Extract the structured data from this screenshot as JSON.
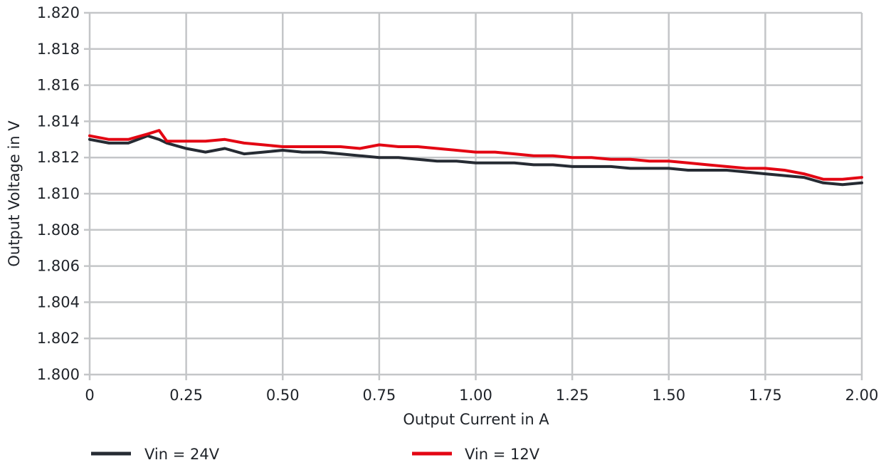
{
  "chart_data": {
    "type": "line",
    "xlabel": "Output Current in A",
    "ylabel": "Output Voltage in V",
    "xlim": [
      0,
      2.0
    ],
    "ylim": [
      1.8,
      1.82
    ],
    "x_ticks": [
      0,
      0.25,
      0.5,
      0.75,
      1.0,
      1.25,
      1.5,
      1.75,
      2.0
    ],
    "x_tick_labels": [
      "0",
      "0.25",
      "0.50",
      "0.75",
      "1.00",
      "1.25",
      "1.50",
      "1.75",
      "2.00"
    ],
    "y_ticks": [
      1.8,
      1.802,
      1.804,
      1.806,
      1.808,
      1.81,
      1.812,
      1.814,
      1.816,
      1.818,
      1.82
    ],
    "y_tick_labels": [
      "1.800",
      "1.802",
      "1.804",
      "1.806",
      "1.808",
      "1.810",
      "1.812",
      "1.814",
      "1.816",
      "1.818",
      "1.820"
    ],
    "grid": true,
    "legend_position": "bottom",
    "series": [
      {
        "name": "Vin = 24V",
        "color": "#262b33",
        "x": [
          0,
          0.05,
          0.1,
          0.15,
          0.18,
          0.2,
          0.25,
          0.3,
          0.35,
          0.4,
          0.45,
          0.5,
          0.55,
          0.6,
          0.65,
          0.7,
          0.75,
          0.8,
          0.85,
          0.9,
          0.95,
          1.0,
          1.05,
          1.1,
          1.15,
          1.2,
          1.25,
          1.3,
          1.35,
          1.4,
          1.45,
          1.5,
          1.55,
          1.6,
          1.65,
          1.7,
          1.75,
          1.8,
          1.85,
          1.9,
          1.95,
          2.0
        ],
        "y": [
          1.813,
          1.8128,
          1.8128,
          1.8132,
          1.813,
          1.8128,
          1.8125,
          1.8123,
          1.8125,
          1.8122,
          1.8123,
          1.8124,
          1.8123,
          1.8123,
          1.8122,
          1.8121,
          1.812,
          1.812,
          1.8119,
          1.8118,
          1.8118,
          1.8117,
          1.8117,
          1.8117,
          1.8116,
          1.8116,
          1.8115,
          1.8115,
          1.8115,
          1.8114,
          1.8114,
          1.8114,
          1.8113,
          1.8113,
          1.8113,
          1.8112,
          1.8111,
          1.811,
          1.8109,
          1.8106,
          1.8105,
          1.8106
        ]
      },
      {
        "name": "Vin = 12V",
        "color": "#e30613",
        "x": [
          0,
          0.05,
          0.1,
          0.15,
          0.18,
          0.2,
          0.25,
          0.3,
          0.35,
          0.4,
          0.45,
          0.5,
          0.55,
          0.6,
          0.65,
          0.7,
          0.75,
          0.8,
          0.85,
          0.9,
          0.95,
          1.0,
          1.05,
          1.1,
          1.15,
          1.2,
          1.25,
          1.3,
          1.35,
          1.4,
          1.45,
          1.5,
          1.55,
          1.6,
          1.65,
          1.7,
          1.75,
          1.8,
          1.85,
          1.9,
          1.95,
          2.0
        ],
        "y": [
          1.8132,
          1.813,
          1.813,
          1.8133,
          1.8135,
          1.8129,
          1.8129,
          1.8129,
          1.813,
          1.8128,
          1.8127,
          1.8126,
          1.8126,
          1.8126,
          1.8126,
          1.8125,
          1.8127,
          1.8126,
          1.8126,
          1.8125,
          1.8124,
          1.8123,
          1.8123,
          1.8122,
          1.8121,
          1.8121,
          1.812,
          1.812,
          1.8119,
          1.8119,
          1.8118,
          1.8118,
          1.8117,
          1.8116,
          1.8115,
          1.8114,
          1.8114,
          1.8113,
          1.8111,
          1.8108,
          1.8108,
          1.8109
        ]
      }
    ]
  }
}
